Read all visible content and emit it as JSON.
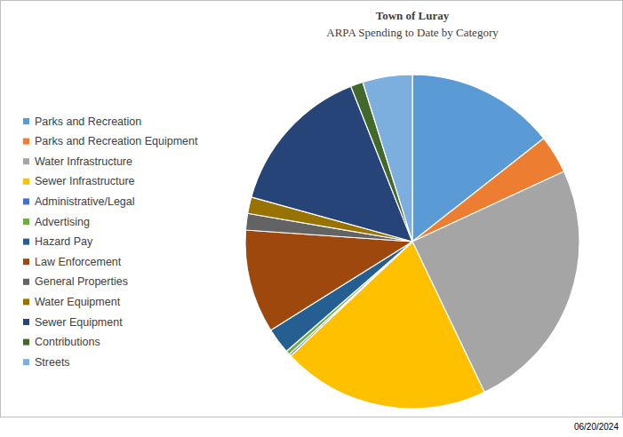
{
  "chart_data": {
    "type": "pie",
    "title": "Town of Luray",
    "subtitle": "ARPA Spending to Date by Category",
    "categories": [
      "Parks and Recreation",
      "Parks and Recreation Equipment",
      "Water Infrastructure",
      "Sewer Infrastructure",
      "Administrative/Legal",
      "Advertising",
      "Hazard Pay",
      "Law Enforcement",
      "General Properties",
      "Water Equipment",
      "Sewer Equipment",
      "Contributions",
      "Streets"
    ],
    "values": [
      14.4,
      3.7,
      24.8,
      20.1,
      0.2,
      0.4,
      2.5,
      10,
      1.6,
      1.6,
      14.7,
      1.2,
      4.8
    ],
    "colors": [
      "#5b9bd5",
      "#ed7d31",
      "#a5a5a5",
      "#ffc000",
      "#4472c4",
      "#70ad47",
      "#255e91",
      "#9e480e",
      "#636363",
      "#997300",
      "#264478",
      "#43682b",
      "#7cafdd"
    ],
    "legend": "left",
    "annotations": [
      "06/20/2024"
    ]
  }
}
